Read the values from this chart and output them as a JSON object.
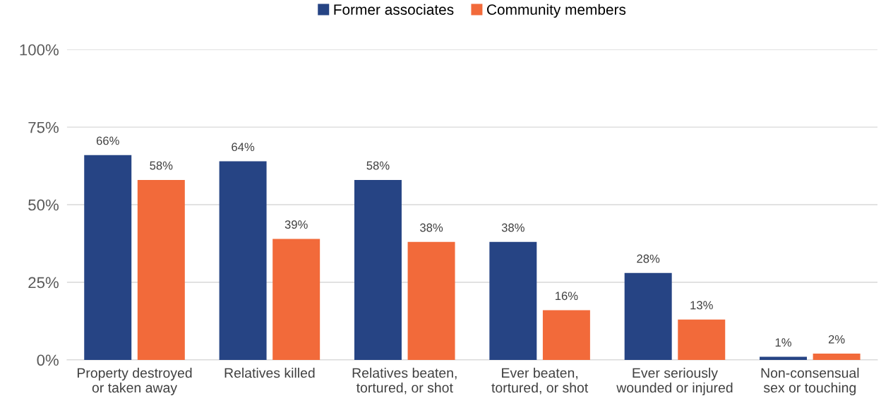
{
  "chart_data": {
    "type": "bar",
    "categories": [
      "Property destroyed\nor taken away",
      "Relatives killed",
      "Relatives beaten,\ntortured, or shot",
      "Ever beaten,\ntortured, or shot",
      "Ever seriously\nwounded or injured",
      "Non-consensual\nsex or touching"
    ],
    "series": [
      {
        "name": "Former associates",
        "color": "#264484",
        "values": [
          66,
          64,
          58,
          38,
          28,
          1
        ],
        "value_labels": [
          "66%",
          "64%",
          "58%",
          "38%",
          "28%",
          "1%"
        ]
      },
      {
        "name": "Community members",
        "color": "#f26a3a",
        "values": [
          58,
          39,
          38,
          16,
          13,
          2
        ],
        "value_labels": [
          "58%",
          "39%",
          "38%",
          "16%",
          "13%",
          "2%"
        ]
      }
    ],
    "ylim": [
      0,
      100
    ],
    "yticks": [
      {
        "value": 0,
        "label": "0%"
      },
      {
        "value": 25,
        "label": "25%"
      },
      {
        "value": 50,
        "label": "50%"
      },
      {
        "value": 75,
        "label": "75%"
      },
      {
        "value": 100,
        "label": "100%"
      }
    ],
    "grid": "y",
    "legend": "top"
  }
}
